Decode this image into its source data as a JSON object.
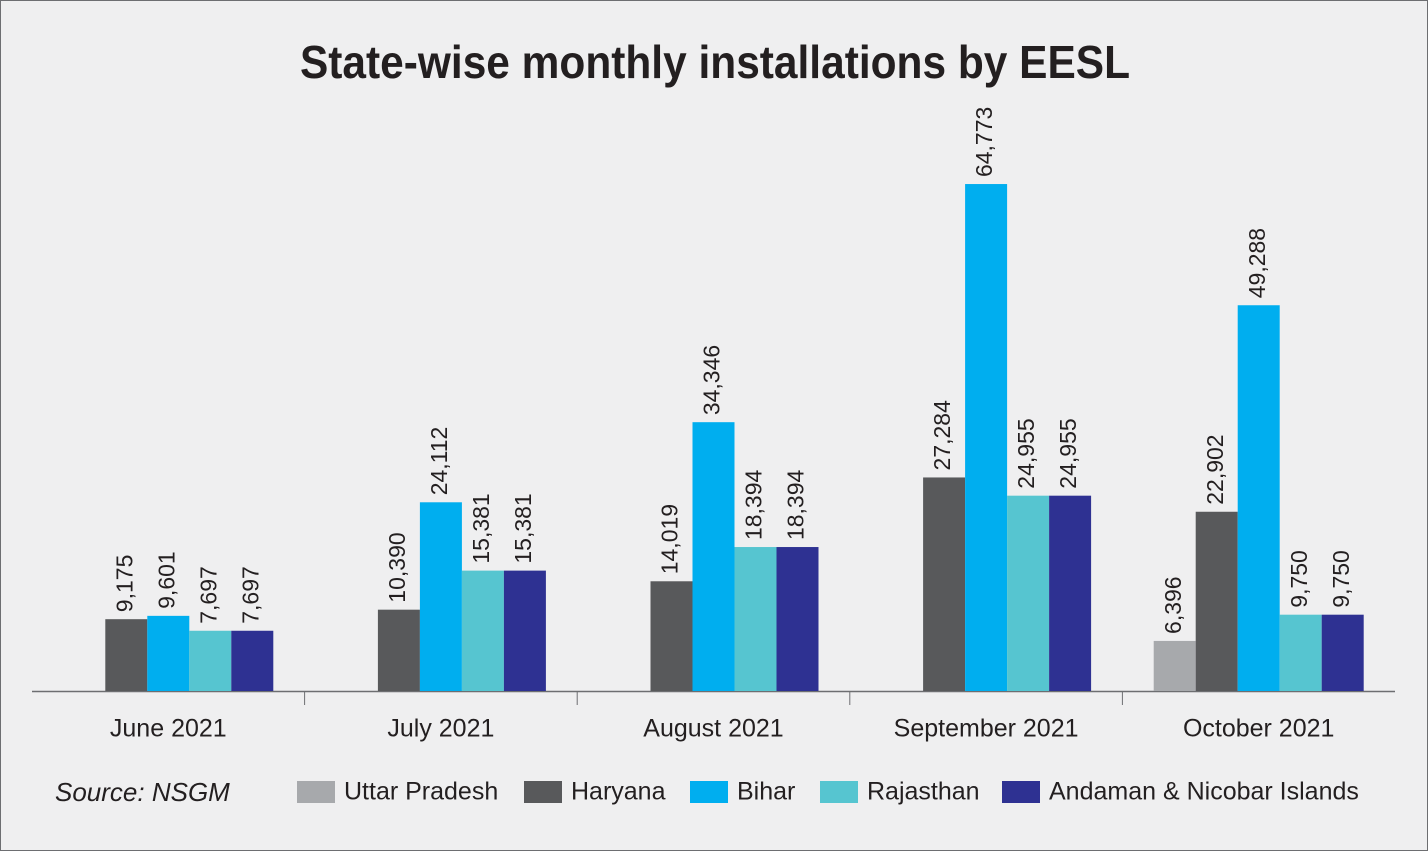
{
  "chart_data": {
    "type": "bar",
    "title": "State-wise monthly installations by EESL",
    "categories": [
      "June 2021",
      "July 2021",
      "August 2021",
      "September 2021",
      "October 2021"
    ],
    "series": [
      {
        "name": "Uttar Pradesh",
        "color": "#a7a9ac",
        "values": [
          null,
          null,
          null,
          null,
          6396
        ],
        "value_labels": [
          null,
          null,
          null,
          null,
          "6,396"
        ]
      },
      {
        "name": "Haryana",
        "color": "#58595b",
        "values": [
          9175,
          10390,
          14019,
          27284,
          22902
        ],
        "value_labels": [
          "9,175",
          "10,390",
          "14,019",
          "27,284",
          "22,902"
        ]
      },
      {
        "name": "Bihar",
        "color": "#00aeef",
        "values": [
          9601,
          24112,
          34346,
          64773,
          49288
        ],
        "value_labels": [
          "9,601",
          "24,112",
          "34,346",
          "64,773",
          "49,288"
        ]
      },
      {
        "name": "Rajasthan",
        "color": "#56c5d0",
        "values": [
          7697,
          15381,
          18394,
          24955,
          9750
        ],
        "value_labels": [
          "7,697",
          "15,381",
          "18,394",
          "24,955",
          "9,750"
        ]
      },
      {
        "name": "Andaman & Nicobar Islands",
        "color": "#2e3192",
        "values": [
          7697,
          15381,
          18394,
          24955,
          9750
        ],
        "value_labels": [
          "7,697",
          "15,381",
          "18,394",
          "24,955",
          "9,750"
        ]
      }
    ],
    "ylim": [
      0,
      75000
    ],
    "source": "Source: NSGM"
  }
}
